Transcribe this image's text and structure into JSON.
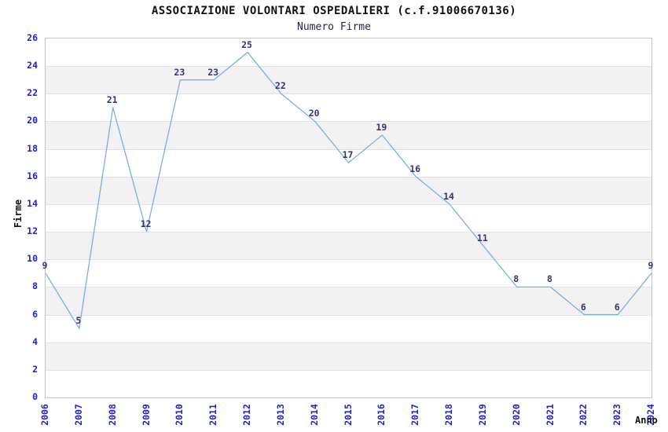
{
  "header": {
    "title": "ASSOCIAZIONE VOLONTARI OSPEDALIERI (c.f.91006670136)",
    "subtitle": "Numero Firme"
  },
  "chart_data": {
    "type": "line",
    "title": "ASSOCIAZIONE VOLONTARI OSPEDALIERI (c.f.91006670136)",
    "subtitle": "Numero Firme",
    "xlabel": "Anno",
    "ylabel": "Firme",
    "categories": [
      "2006",
      "2007",
      "2008",
      "2009",
      "2010",
      "2011",
      "2012",
      "2013",
      "2014",
      "2015",
      "2016",
      "2017",
      "2018",
      "2019",
      "2020",
      "2021",
      "2022",
      "2023",
      "2024"
    ],
    "values": [
      9,
      5,
      21,
      12,
      23,
      23,
      25,
      22,
      20,
      17,
      19,
      16,
      14,
      11,
      8,
      8,
      6,
      6,
      9
    ],
    "ylim": [
      0,
      26
    ],
    "ytick_step": 2,
    "grid": "horizontal",
    "alternating_bands": true,
    "legend": "none",
    "colors": {
      "line": "#7aafe5",
      "point_label": "#333380",
      "tick_label": "#2222cc",
      "band": "#f2f2f2",
      "gridline": "#e2e2e2",
      "plot_border": "#c6c6c6",
      "title": "#111111",
      "subtitle": "#222255",
      "axis_title": "#111111"
    }
  }
}
